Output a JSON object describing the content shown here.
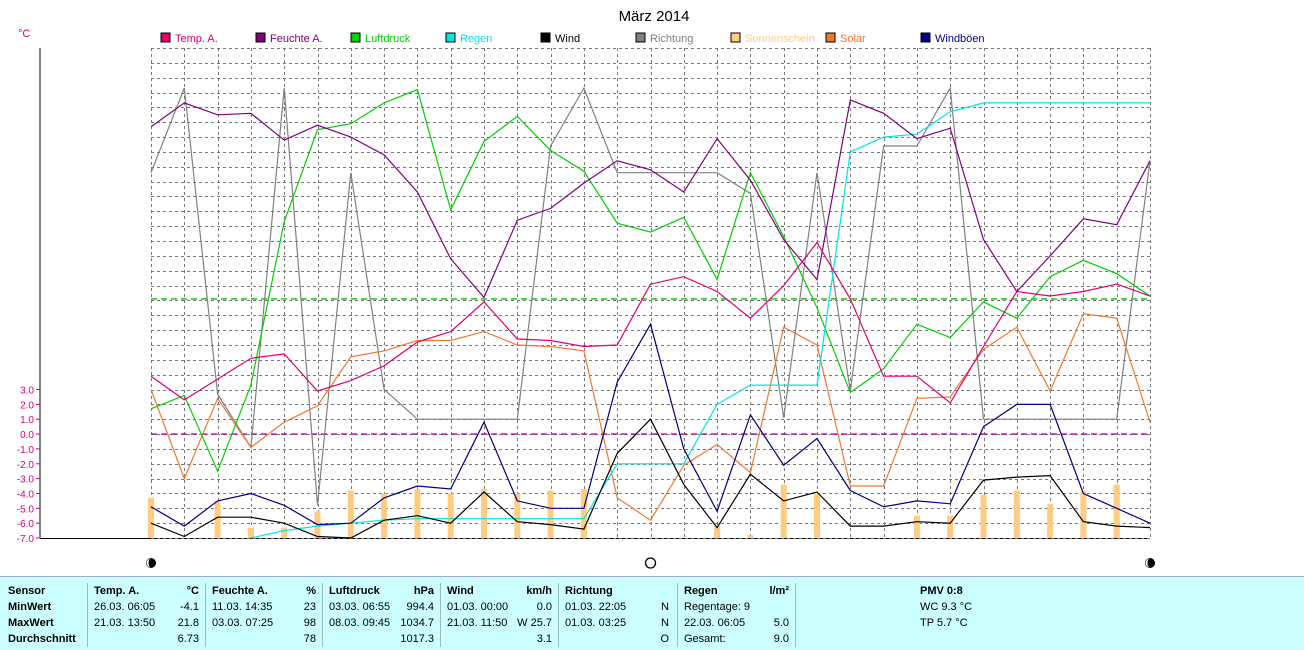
{
  "chart_data": {
    "type": "line",
    "title": "März 2014",
    "ylabel": "°C",
    "y_ticks": [
      "3.0",
      "2.0",
      "1.0",
      "0.0",
      "-1.0",
      "-2.0",
      "-3.0",
      "-4.0",
      "-5.0",
      "-6.0",
      "-7.0"
    ],
    "ylim": [
      -7,
      26
    ],
    "legend": [
      {
        "name": "Temp. A.",
        "color": "#e0006e"
      },
      {
        "name": "Feuchte A.",
        "color": "#80007f"
      },
      {
        "name": "Luftdruck",
        "color": "#00d000"
      },
      {
        "name": "Regen",
        "color": "#00e5e5"
      },
      {
        "name": "Wind",
        "color": "#000000"
      },
      {
        "name": "Richtung",
        "color": "#808080"
      },
      {
        "name": "Sonnenschein",
        "color": "#ffcc80"
      },
      {
        "name": "Solar",
        "color": "#f07830"
      },
      {
        "name": "Windböen",
        "color": "#000080"
      }
    ],
    "series": [
      {
        "key": "temp",
        "values": [
          3.9,
          2.3,
          3.7,
          5.1,
          5.4,
          2.9,
          3.6,
          4.6,
          6.2,
          6.9,
          8.9,
          6.4,
          6.3,
          5.9,
          6.0,
          10.1,
          10.6,
          9.6,
          7.8,
          10.0,
          12.9,
          9.1,
          3.9,
          3.9,
          2.1,
          5.9,
          9.6,
          9.3,
          9.6,
          10.1,
          9.3
        ]
      },
      {
        "key": "feuchte",
        "values": [
          20.7,
          22.3,
          21.5,
          21.6,
          19.8,
          20.8,
          20.0,
          18.8,
          16.3,
          11.8,
          9.2,
          14.4,
          15.2,
          16.9,
          18.4,
          17.8,
          16.3,
          19.9,
          17.1,
          13.1,
          10.4,
          22.5,
          21.6,
          19.9,
          20.6,
          13.1,
          9.6,
          12.0,
          14.5,
          14.1,
          18.4
        ]
      },
      {
        "key": "luftdruck",
        "values": [
          1.7,
          2.6,
          -2.5,
          3.3,
          14.3,
          20.5,
          20.9,
          22.3,
          23.2,
          15.1,
          19.7,
          21.4,
          19.1,
          17.7,
          14.2,
          13.6,
          14.6,
          10.4,
          17.6,
          13.3,
          8.5,
          2.8,
          4.4,
          7.4,
          6.5,
          8.9,
          7.8,
          10.6,
          11.7,
          10.8,
          9.3
        ]
      },
      {
        "key": "regen",
        "values": [
          null,
          null,
          null,
          -7.0,
          -6.5,
          -6.2,
          -6.0,
          -5.8,
          -5.7,
          -5.7,
          -5.7,
          -5.7,
          -5.7,
          -5.7,
          -2.0,
          -2.0,
          -2.0,
          2.0,
          3.3,
          3.3,
          3.3,
          19.0,
          20.0,
          20.2,
          21.7,
          22.3,
          22.3,
          22.3,
          22.3,
          22.3,
          22.3
        ]
      },
      {
        "key": "wind",
        "values": [
          -6.0,
          -6.9,
          -5.6,
          -5.6,
          -6.0,
          -6.9,
          -7.0,
          -5.8,
          -5.5,
          -6.0,
          -3.9,
          -5.9,
          -6.1,
          -6.4,
          -1.3,
          1.0,
          -3.4,
          -6.3,
          -2.7,
          -4.5,
          -3.9,
          -6.2,
          -6.2,
          -5.9,
          -6.0,
          -3.1,
          -2.9,
          -2.8,
          -5.9,
          -6.2,
          -6.3
        ]
      },
      {
        "key": "richtung",
        "values": [
          17.6,
          23.3,
          2.7,
          -0.9,
          23.3,
          -4.8,
          17.6,
          3.0,
          1.0,
          1.0,
          1.0,
          1.0,
          19.4,
          23.3,
          17.6,
          17.6,
          17.6,
          17.6,
          16.2,
          1.1,
          17.6,
          2.9,
          19.4,
          19.4,
          23.3,
          1.0,
          1.0,
          1.0,
          1.0,
          1.0,
          18.4
        ]
      },
      {
        "key": "solar",
        "values": [
          3.0,
          -3.0,
          2.4,
          -0.9,
          0.8,
          1.9,
          5.2,
          5.6,
          6.3,
          6.3,
          6.9,
          6.0,
          5.9,
          5.6,
          -4.3,
          -5.8,
          -2.1,
          -0.7,
          -2.6,
          7.2,
          6.0,
          -3.5,
          -3.5,
          2.4,
          2.5,
          5.7,
          7.2,
          2.9,
          8.1,
          7.8,
          0.8
        ]
      },
      {
        "key": "windboeen",
        "values": [
          -4.9,
          -6.2,
          -4.5,
          -4.0,
          -4.8,
          -6.1,
          -6.0,
          -4.3,
          -3.5,
          -3.7,
          0.8,
          -4.5,
          -5.0,
          -5.0,
          3.5,
          7.4,
          -1.0,
          -5.2,
          1.3,
          -2.1,
          -0.3,
          -3.8,
          -4.9,
          -4.5,
          -4.7,
          0.5,
          2.0,
          2.0,
          -4.0,
          -5.0,
          -6.0
        ]
      }
    ],
    "sunshine_bars": [
      -4.3,
      null,
      -4.5,
      -6.3,
      -6.3,
      -5.2,
      -3.8,
      -4.0,
      -3.7,
      -4.0,
      -3.7,
      -4.0,
      -3.8,
      -3.7,
      null,
      null,
      null,
      -6.2,
      -6.8,
      -3.4,
      -4.0,
      null,
      null,
      -5.5,
      -5.5,
      -4.1,
      -3.8,
      -4.7,
      -3.8,
      -3.4,
      null
    ],
    "reference_lines": [
      {
        "color": "#00c000",
        "value": 9.1
      },
      {
        "color": "#b000b0",
        "value": 0.0
      }
    ],
    "moon_phases": [
      {
        "day": 1,
        "phase": "new"
      },
      {
        "day": 16,
        "phase": "full"
      },
      {
        "day": 31,
        "phase": "new"
      }
    ],
    "grid": true
  },
  "stats": {
    "sensor": {
      "header": "Sensor",
      "rows": [
        "MinWert",
        "MaxWert",
        "Durchschnitt"
      ]
    },
    "temp": {
      "header": "Temp. A.",
      "unit": "°C",
      "min": {
        "time": "26.03.  06:05",
        "value": "-4.1"
      },
      "max": {
        "time": "21.03.  13:50",
        "value": "21.8"
      },
      "avg": "6.73"
    },
    "feuchte": {
      "header": "Feuchte A.",
      "unit": "%",
      "min": {
        "time": "11.03.  14:35",
        "value": "23"
      },
      "max": {
        "time": "03.03.  07:25",
        "value": "98"
      },
      "avg": "78"
    },
    "luftdruck": {
      "header": "Luftdruck",
      "unit": "hPa",
      "min": {
        "time": "03.03.  06:55",
        "value": "994.4"
      },
      "max": {
        "time": "08.03.  09:45",
        "value": "1034.7"
      },
      "avg": "1017.3"
    },
    "wind": {
      "header": "Wind",
      "unit": "km/h",
      "min": {
        "time": "01.03.  00:00",
        "value": "0.0"
      },
      "max": {
        "time": "21.03.  11:50",
        "value": "W 25.7"
      },
      "avg": "3.1"
    },
    "richtung": {
      "header": "Richtung",
      "min": {
        "time": "01.03.  22:05",
        "value": "N"
      },
      "max": {
        "time": "01.03.  03:25",
        "value": "N"
      },
      "avg": "O"
    },
    "regen": {
      "header": "Regen",
      "unit": "l/m²",
      "regentage": "Regentage: 9",
      "max": {
        "time": "22.03.  06:05",
        "value": "5.0"
      },
      "gesamt_label": "Gesamt:",
      "gesamt": "9.0"
    },
    "pmv": {
      "header": "PMV 0:8",
      "wc": "WC 9.3 °C",
      "tp": "TP 5.7 °C"
    }
  }
}
